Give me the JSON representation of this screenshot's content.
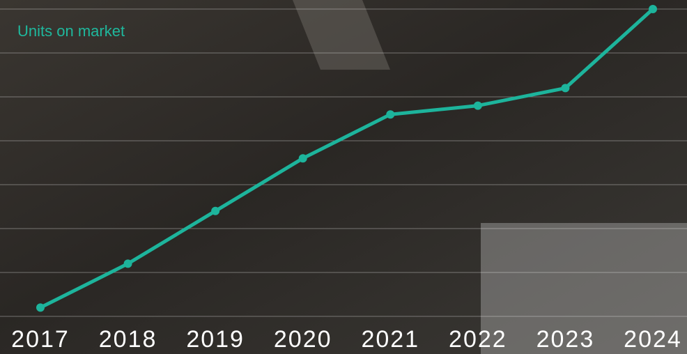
{
  "chart_data": {
    "type": "line",
    "title": "Units on market",
    "categories": [
      "2017",
      "2018",
      "2019",
      "2020",
      "2021",
      "2022",
      "2023",
      "2024"
    ],
    "series": [
      {
        "name": "Units on market",
        "color": "#1db49c",
        "values": [
          0.2,
          1.2,
          2.4,
          3.6,
          4.6,
          4.8,
          5.2,
          7.0
        ]
      }
    ],
    "ylim": [
      0,
      7
    ],
    "yticks": [
      0,
      1,
      2,
      3,
      4,
      5,
      6,
      7
    ],
    "grid": true
  }
}
